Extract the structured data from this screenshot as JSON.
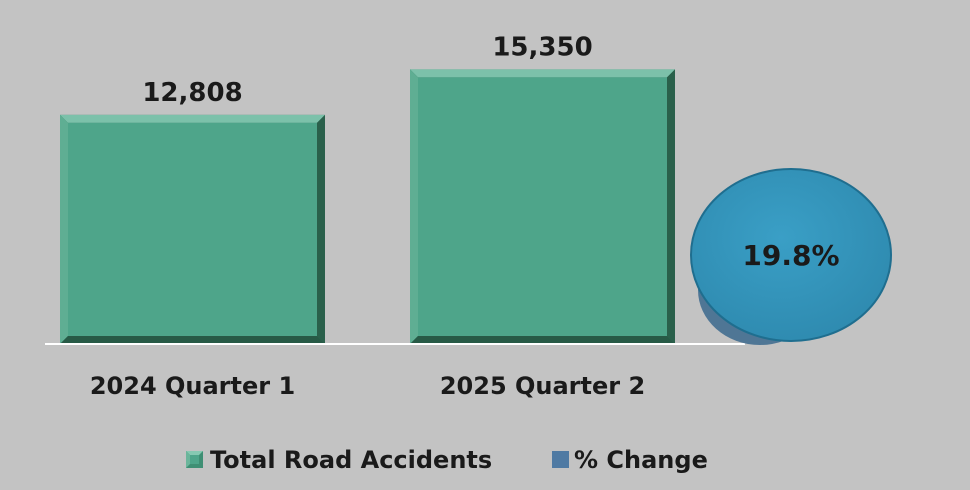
{
  "chart_data": {
    "type": "bar",
    "categories": [
      "2024 Quarter 1",
      "2025 Quarter 2"
    ],
    "series": [
      {
        "name": "Total Road Accidents",
        "values": [
          12808,
          15350
        ],
        "color": "#4ea58a"
      }
    ],
    "value_labels": [
      "12,808",
      "15,350"
    ],
    "change": {
      "name": "% Change",
      "value": 19.8,
      "label": "19.8%",
      "color": "#3597bd"
    },
    "legend": {
      "position": "bottom",
      "items": [
        {
          "label": "Total Road Accidents",
          "color": "#3f8f74",
          "icon": "bevel-square-icon"
        },
        {
          "label": "% Change",
          "color": "#4f7aa3",
          "icon": "square-icon"
        }
      ]
    },
    "ylim": [
      0,
      18000
    ],
    "grid": false,
    "title": "",
    "xlabel": "",
    "ylabel": ""
  }
}
